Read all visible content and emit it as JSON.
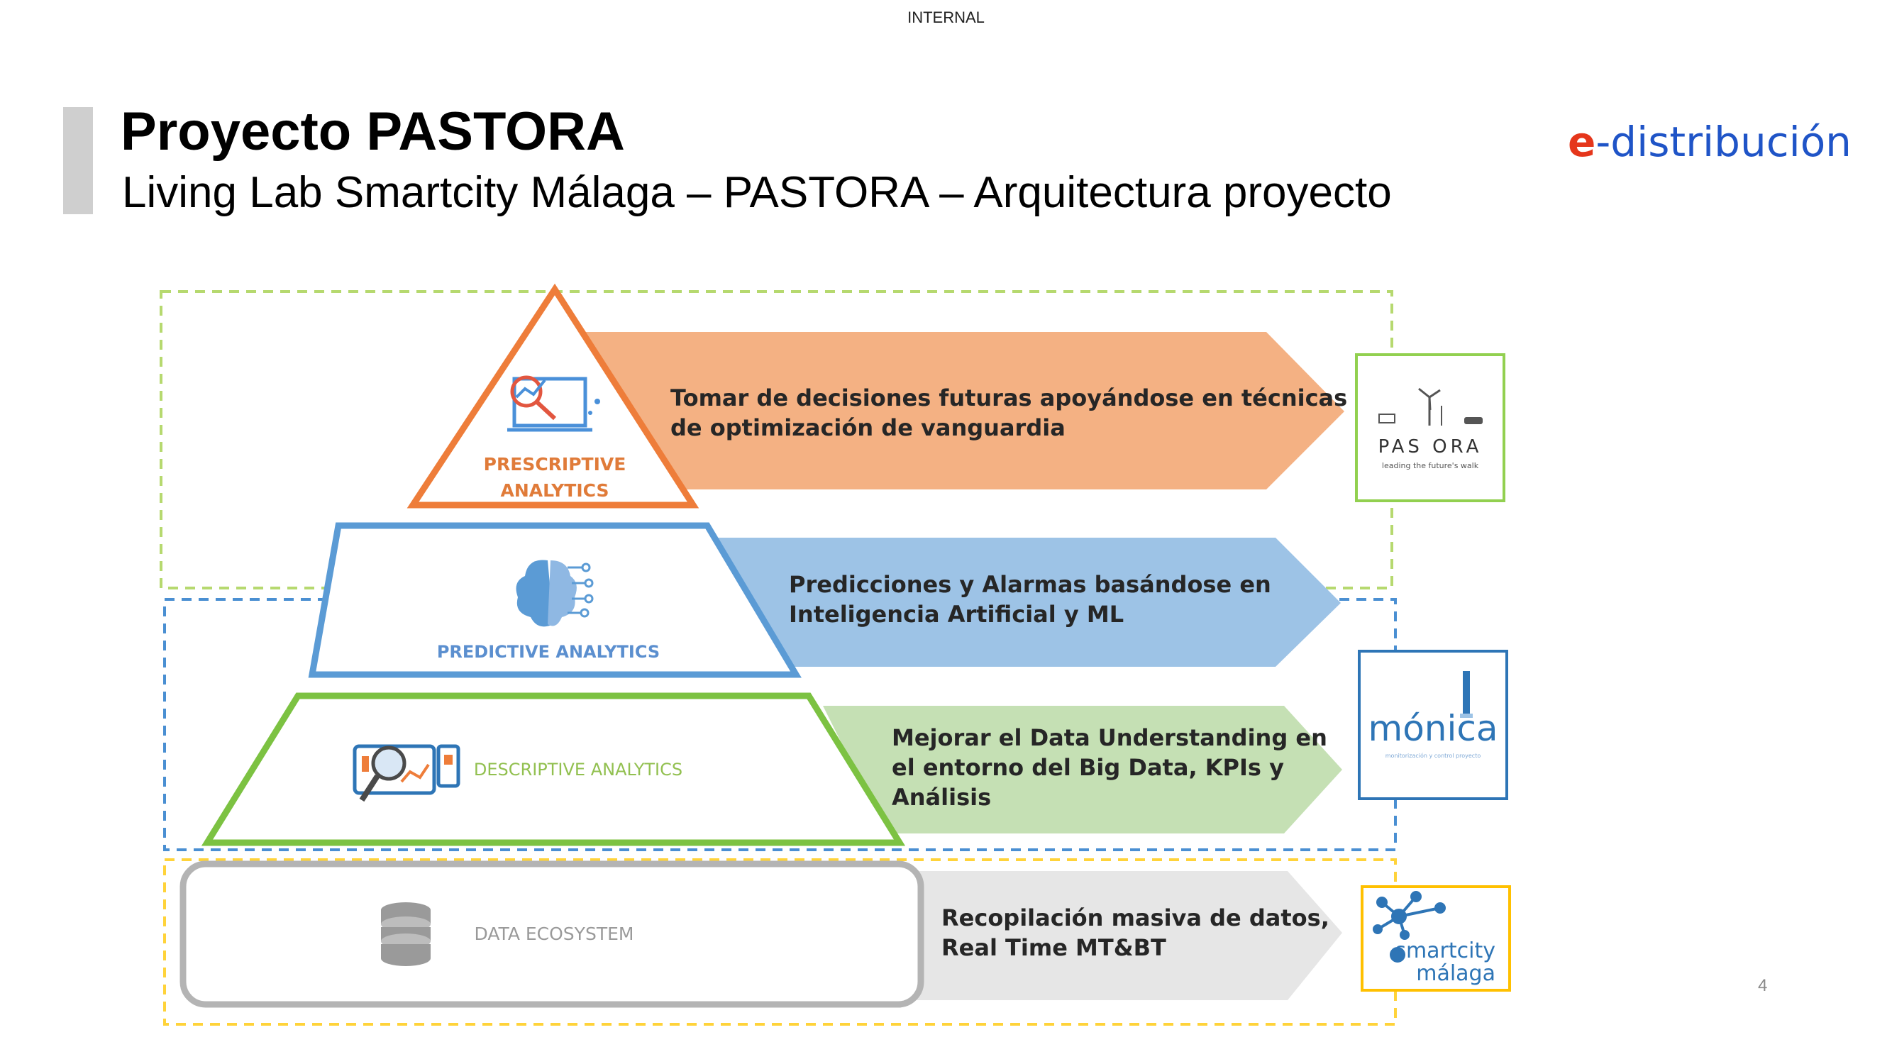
{
  "classification": "INTERNAL",
  "header": {
    "title": "Proyecto PASTORA",
    "subtitle": "Living Lab Smartcity Málaga – PASTORA – Arquitectura proyecto"
  },
  "brand": {
    "logo_e": "e",
    "logo_rest": "-distribución"
  },
  "page_number": "4",
  "layers": [
    {
      "id": "prescriptive",
      "label_lines": [
        "PRESCRIPTIVE",
        "ANALYTICS"
      ],
      "description_lines": [
        "Tomar de decisiones futuras apoyándose en técnicas",
        "de optimización de vanguardia"
      ],
      "icon": "analytics-laptop-icon",
      "color": "#ee7d3a",
      "arrow_color": "#f4b183"
    },
    {
      "id": "predictive",
      "label_lines": [
        "PREDICTIVE ANALYTICS"
      ],
      "description_lines": [
        "Predicciones y Alarmas basándose en",
        "Inteligencia Artificial y ML"
      ],
      "icon": "brain-circuit-icon",
      "color": "#5b9bd5",
      "arrow_color": "#9dc3e6"
    },
    {
      "id": "descriptive",
      "label_lines": [
        "DESCRIPTIVE ANALYTICS"
      ],
      "description_lines": [
        "Mejorar el Data Understanding en",
        "el entorno del Big Data, KPIs y",
        "Análisis"
      ],
      "icon": "dashboard-magnifier-icon",
      "color": "#7cc242",
      "arrow_color": "#c5e0b4"
    },
    {
      "id": "data",
      "label_lines": [
        "DATA ECOSYSTEM"
      ],
      "description_lines": [
        "Recopilación masiva de datos,",
        "Real Time MT&BT"
      ],
      "icon": "database-icon",
      "color": "#b4b4b4",
      "arrow_color": "#e6e6e6"
    }
  ],
  "partners": [
    {
      "id": "pastora",
      "name": "PAS ORA",
      "tagline": "leading the future's walk",
      "border_color": "#92d050",
      "icon": "wind-turbine-icon"
    },
    {
      "id": "monica",
      "name": "mónica",
      "tagline": "monitorización y control proyecto",
      "border_color": "#2e75b6",
      "icon": "lighthouse-icon"
    },
    {
      "id": "smartcity",
      "name_line1": "smartcity",
      "name_line2": "málaga",
      "border_color": "#ffc000",
      "icon": "network-nodes-icon"
    }
  ],
  "colors": {
    "frame_green": "#b6d96f",
    "frame_blue": "#4a8fd2",
    "frame_yellow": "#ffd33a",
    "prescriptive_text": "#e07b39",
    "predictive_text": "#5b8fcf",
    "descriptive_text": "#92c050",
    "data_text": "#9a9a9a"
  }
}
